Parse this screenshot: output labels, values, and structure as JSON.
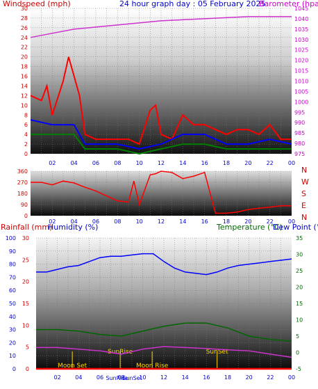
{
  "panel1": {
    "left_label": "Windspeed (mph)",
    "center_title": "24 hour graph day : 05 February 2025",
    "right_label": "Barometer (hpa)",
    "left_ticks": [
      "0",
      "2",
      "4",
      "6",
      "8",
      "10",
      "12",
      "14",
      "16",
      "18",
      "20",
      "22",
      "24",
      "26",
      "28",
      "30"
    ],
    "right_ticks": [
      "975",
      "980",
      "985",
      "990",
      "995",
      "1000",
      "1005",
      "1010",
      "1015",
      "1020",
      "1025",
      "1030",
      "1035",
      "1040",
      "1045"
    ],
    "x_ticks": [
      "02",
      "04",
      "06",
      "08",
      "10",
      "12",
      "14",
      "16",
      "18",
      "20",
      "22",
      "00"
    ]
  },
  "panel2": {
    "left_ticks": [
      "0",
      "90",
      "180",
      "270",
      "360"
    ],
    "right_labels": [
      "N",
      "W",
      "S",
      "E",
      "N"
    ],
    "x_ticks": [
      "02",
      "04",
      "06",
      "08",
      "10",
      "12",
      "14",
      "16",
      "18",
      "20",
      "22",
      "00"
    ]
  },
  "panel3": {
    "label_rain": "Rainfall (mm)",
    "label_humidity": "Humidity (%)",
    "label_temp": "Temperature (°C)",
    "label_dew": "Dew Point (°C",
    "hum_ticks": [
      "0",
      "10",
      "20",
      "30",
      "40",
      "50",
      "60",
      "70",
      "80",
      "90",
      "100"
    ],
    "rain_ticks": [
      "0",
      "5",
      "10",
      "15",
      "20",
      "25",
      "30"
    ],
    "temp_ticks": [
      "-5",
      "0",
      "5",
      "10",
      "15",
      "20",
      "25",
      "30",
      "35"
    ],
    "x_ticks": [
      "02",
      "04",
      "06",
      "08",
      "10",
      "12",
      "14",
      "16",
      "18",
      "20",
      "22",
      "00"
    ],
    "events": [
      {
        "label": "Moon Set",
        "x": 3.4,
        "color": "#ffd700"
      },
      {
        "label": "SunRise",
        "x": 7.9,
        "color": "#ffd700"
      },
      {
        "label": "Moon Rise",
        "x": 10.9,
        "color": "#ffd700"
      },
      {
        "label": "SunSet",
        "x": 17.0,
        "color": "#ffd700"
      }
    ],
    "bottom_markers": [
      "SunRise",
      "SunSet"
    ]
  },
  "colors": {
    "windspeed": "#ff0000",
    "wind_avg": "#0000ff",
    "wind_min": "#008000",
    "barometer": "#cc33cc",
    "direction": "#ff0000",
    "temperature": "#0000ff",
    "dewpoint": "#006600",
    "humidity": "#cc33cc",
    "rain": "#ff0000",
    "label_red": "#cc0000",
    "label_blue": "#0000cc",
    "label_magenta": "#cc00cc",
    "label_green": "#006600"
  },
  "chart_data": [
    {
      "type": "line",
      "title": "24 hour graph day : 05 February 2025",
      "x_range": [
        0,
        24
      ],
      "y_left": {
        "label": "Windspeed (mph)",
        "range": [
          0,
          30
        ]
      },
      "y_right": {
        "label": "Barometer (hpa)",
        "range": [
          975,
          1045
        ]
      },
      "series": [
        {
          "name": "Barometer (hpa)",
          "axis": "right",
          "x": [
            0,
            2,
            4,
            6,
            8,
            10,
            12,
            14,
            16,
            18,
            20,
            22,
            24
          ],
          "values": [
            1031,
            1033,
            1035,
            1036,
            1037,
            1038,
            1039,
            1039.5,
            1040,
            1040.5,
            1041,
            1041,
            1041
          ]
        },
        {
          "name": "Windspeed (mph)",
          "axis": "left",
          "x": [
            0,
            1,
            1.5,
            2,
            3,
            3.5,
            4,
            4.5,
            5,
            6,
            7,
            8,
            9,
            10,
            11,
            11.5,
            12,
            13,
            14,
            15,
            16,
            17,
            18,
            19,
            20,
            21,
            22,
            23,
            24
          ],
          "values": [
            12,
            11,
            14,
            8,
            15,
            20,
            16,
            12,
            4,
            3,
            3,
            3,
            3,
            2,
            9,
            10,
            4,
            3,
            8,
            6,
            6,
            5,
            4,
            5,
            5,
            4,
            6,
            3,
            3
          ]
        },
        {
          "name": "Wind average",
          "axis": "left",
          "x": [
            0,
            2,
            4,
            5,
            6,
            8,
            10,
            12,
            14,
            16,
            18,
            20,
            22,
            24
          ],
          "values": [
            7,
            6,
            6,
            2,
            2,
            2,
            1,
            2,
            4,
            4,
            2,
            2,
            3,
            2
          ]
        },
        {
          "name": "Wind minimum",
          "axis": "left",
          "x": [
            0,
            2,
            4,
            5,
            6,
            8,
            10,
            12,
            14,
            16,
            18,
            20,
            22,
            24
          ],
          "values": [
            4,
            4,
            4,
            1,
            1,
            1,
            0,
            1,
            2,
            2,
            1,
            1,
            1,
            1
          ]
        }
      ]
    },
    {
      "type": "line",
      "title": "",
      "x_range": [
        0,
        24
      ],
      "y_range": [
        0,
        360
      ],
      "y_ticks": [
        0,
        90,
        180,
        270,
        360
      ],
      "series": [
        {
          "name": "Wind direction",
          "x": [
            0,
            1,
            2,
            3,
            4,
            5,
            6,
            7,
            8,
            9,
            9.5,
            10,
            11,
            11.5,
            12,
            13,
            14,
            15,
            16,
            17,
            18,
            19,
            20,
            21,
            22,
            23,
            24
          ],
          "values": [
            270,
            270,
            250,
            280,
            265,
            230,
            200,
            160,
            120,
            110,
            280,
            90,
            330,
            340,
            360,
            350,
            300,
            320,
            350,
            20,
            20,
            30,
            50,
            60,
            70,
            80,
            80
          ]
        }
      ]
    },
    {
      "type": "line",
      "title": "",
      "x_range": [
        0,
        24
      ],
      "y_left": {
        "label": "Humidity (%)",
        "range": [
          0,
          100
        ]
      },
      "y_left_inner": {
        "label": "Rainfall (mm)",
        "range": [
          0,
          30
        ]
      },
      "y_right": {
        "label": "Temperature (°C)",
        "range": [
          -5,
          35
        ]
      },
      "series": [
        {
          "name": "Humidity (%)",
          "axis": "left",
          "x": [
            0,
            1,
            2,
            3,
            4,
            5,
            6,
            7,
            8,
            9,
            10,
            11,
            12,
            13,
            14,
            15,
            16,
            17,
            18,
            19,
            20,
            21,
            22,
            23,
            24
          ],
          "values": [
            74,
            74,
            76,
            78,
            79,
            82,
            85,
            86,
            86,
            87,
            88,
            88,
            82,
            77,
            74,
            73,
            72,
            74,
            77,
            79,
            80,
            81,
            82,
            83,
            84
          ]
        },
        {
          "name": "Temperature (°C)",
          "axis": "right",
          "x": [
            0,
            2,
            4,
            6,
            8,
            10,
            12,
            14,
            16,
            18,
            20,
            22,
            24
          ],
          "values": [
            1.5,
            1.5,
            1.0,
            0.5,
            -0.5,
            1.0,
            1.8,
            1.5,
            1.2,
            0.8,
            0.5,
            -0.5,
            -1.5
          ]
        },
        {
          "name": "Dew Point (°C",
          "axis": "right",
          "x": [
            0,
            2,
            4,
            6,
            8,
            10,
            12,
            14,
            16,
            18,
            20,
            22,
            24
          ],
          "values": [
            7.0,
            7.0,
            6.5,
            5.5,
            5.0,
            6.5,
            8.0,
            9.0,
            9.0,
            7.5,
            5.0,
            4.0,
            3.5
          ]
        },
        {
          "name": "Rainfall (mm)",
          "axis": "left_inner",
          "x": [
            0,
            24
          ],
          "values": [
            0,
            0
          ]
        }
      ]
    }
  ]
}
